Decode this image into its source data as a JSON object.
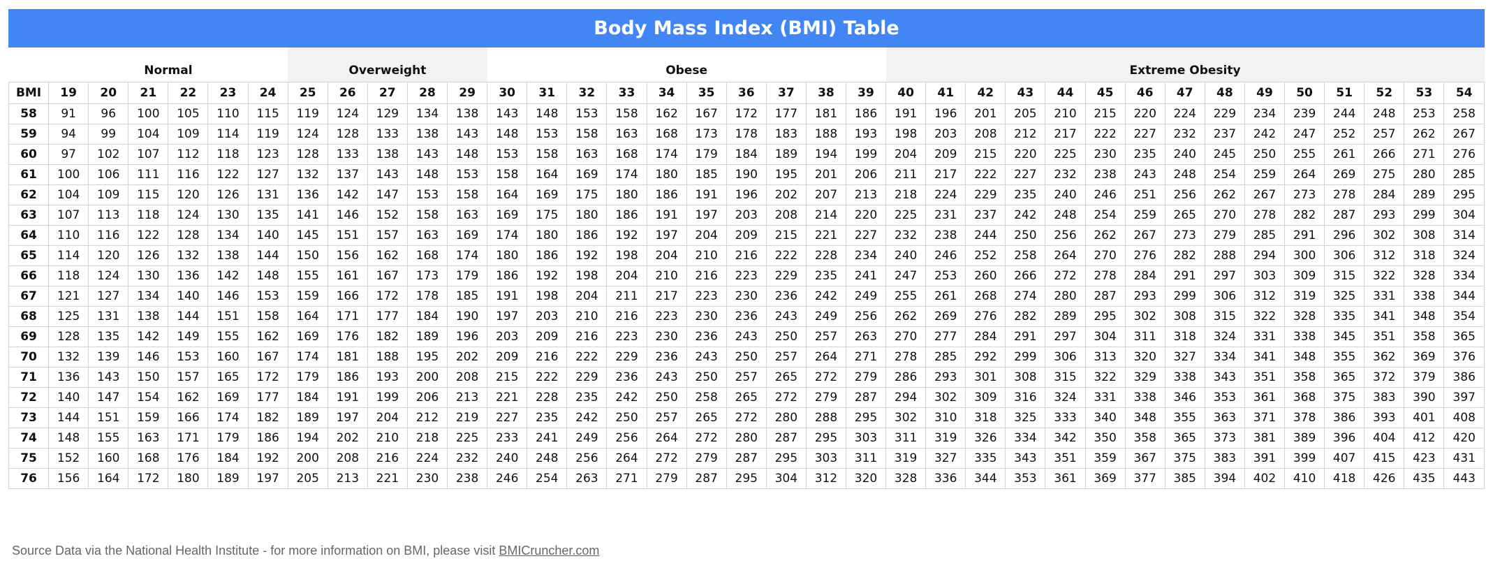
{
  "header": {
    "title": "Body Mass Index (BMI) Table"
  },
  "table": {
    "corner": "BMI",
    "groups": [
      {
        "label": "Normal",
        "bmi": [
          19,
          20,
          21,
          22,
          23,
          24
        ]
      },
      {
        "label": "Overweight",
        "bmi": [
          25,
          26,
          27,
          28,
          29
        ]
      },
      {
        "label": "Obese",
        "bmi": [
          30,
          31,
          32,
          33,
          34,
          35,
          36,
          37,
          38,
          39
        ]
      },
      {
        "label": "Extreme Obesity",
        "bmi": [
          40,
          41,
          42,
          43,
          44,
          45,
          46,
          47,
          48,
          49,
          50,
          51,
          52,
          53,
          54
        ]
      }
    ],
    "rows": [
      {
        "height": 58,
        "weights": [
          91,
          96,
          100,
          105,
          110,
          115,
          119,
          124,
          129,
          134,
          138,
          143,
          148,
          153,
          158,
          162,
          167,
          172,
          177,
          181,
          186,
          191,
          196,
          201,
          205,
          210,
          215,
          220,
          224,
          229,
          234,
          239,
          244,
          248,
          253,
          258
        ]
      },
      {
        "height": 59,
        "weights": [
          94,
          99,
          104,
          109,
          114,
          119,
          124,
          128,
          133,
          138,
          143,
          148,
          153,
          158,
          163,
          168,
          173,
          178,
          183,
          188,
          193,
          198,
          203,
          208,
          212,
          217,
          222,
          227,
          232,
          237,
          242,
          247,
          252,
          257,
          262,
          267
        ]
      },
      {
        "height": 60,
        "weights": [
          97,
          102,
          107,
          112,
          118,
          123,
          128,
          133,
          138,
          143,
          148,
          153,
          158,
          163,
          168,
          174,
          179,
          184,
          189,
          194,
          199,
          204,
          209,
          215,
          220,
          225,
          230,
          235,
          240,
          245,
          250,
          255,
          261,
          266,
          271,
          276
        ]
      },
      {
        "height": 61,
        "weights": [
          100,
          106,
          111,
          116,
          122,
          127,
          132,
          137,
          143,
          148,
          153,
          158,
          164,
          169,
          174,
          180,
          185,
          190,
          195,
          201,
          206,
          211,
          217,
          222,
          227,
          232,
          238,
          243,
          248,
          254,
          259,
          264,
          269,
          275,
          280,
          285
        ]
      },
      {
        "height": 62,
        "weights": [
          104,
          109,
          115,
          120,
          126,
          131,
          136,
          142,
          147,
          153,
          158,
          164,
          169,
          175,
          180,
          186,
          191,
          196,
          202,
          207,
          213,
          218,
          224,
          229,
          235,
          240,
          246,
          251,
          256,
          262,
          267,
          273,
          278,
          284,
          289,
          295
        ]
      },
      {
        "height": 63,
        "weights": [
          107,
          113,
          118,
          124,
          130,
          135,
          141,
          146,
          152,
          158,
          163,
          169,
          175,
          180,
          186,
          191,
          197,
          203,
          208,
          214,
          220,
          225,
          231,
          237,
          242,
          248,
          254,
          259,
          265,
          270,
          278,
          282,
          287,
          293,
          299,
          304
        ]
      },
      {
        "height": 64,
        "weights": [
          110,
          116,
          122,
          128,
          134,
          140,
          145,
          151,
          157,
          163,
          169,
          174,
          180,
          186,
          192,
          197,
          204,
          209,
          215,
          221,
          227,
          232,
          238,
          244,
          250,
          256,
          262,
          267,
          273,
          279,
          285,
          291,
          296,
          302,
          308,
          314
        ]
      },
      {
        "height": 65,
        "weights": [
          114,
          120,
          126,
          132,
          138,
          144,
          150,
          156,
          162,
          168,
          174,
          180,
          186,
          192,
          198,
          204,
          210,
          216,
          222,
          228,
          234,
          240,
          246,
          252,
          258,
          264,
          270,
          276,
          282,
          288,
          294,
          300,
          306,
          312,
          318,
          324
        ]
      },
      {
        "height": 66,
        "weights": [
          118,
          124,
          130,
          136,
          142,
          148,
          155,
          161,
          167,
          173,
          179,
          186,
          192,
          198,
          204,
          210,
          216,
          223,
          229,
          235,
          241,
          247,
          253,
          260,
          266,
          272,
          278,
          284,
          291,
          297,
          303,
          309,
          315,
          322,
          328,
          334
        ]
      },
      {
        "height": 67,
        "weights": [
          121,
          127,
          134,
          140,
          146,
          153,
          159,
          166,
          172,
          178,
          185,
          191,
          198,
          204,
          211,
          217,
          223,
          230,
          236,
          242,
          249,
          255,
          261,
          268,
          274,
          280,
          287,
          293,
          299,
          306,
          312,
          319,
          325,
          331,
          338,
          344
        ]
      },
      {
        "height": 68,
        "weights": [
          125,
          131,
          138,
          144,
          151,
          158,
          164,
          171,
          177,
          184,
          190,
          197,
          203,
          210,
          216,
          223,
          230,
          236,
          243,
          249,
          256,
          262,
          269,
          276,
          282,
          289,
          295,
          302,
          308,
          315,
          322,
          328,
          335,
          341,
          348,
          354
        ]
      },
      {
        "height": 69,
        "weights": [
          128,
          135,
          142,
          149,
          155,
          162,
          169,
          176,
          182,
          189,
          196,
          203,
          209,
          216,
          223,
          230,
          236,
          243,
          250,
          257,
          263,
          270,
          277,
          284,
          291,
          297,
          304,
          311,
          318,
          324,
          331,
          338,
          345,
          351,
          358,
          365
        ]
      },
      {
        "height": 70,
        "weights": [
          132,
          139,
          146,
          153,
          160,
          167,
          174,
          181,
          188,
          195,
          202,
          209,
          216,
          222,
          229,
          236,
          243,
          250,
          257,
          264,
          271,
          278,
          285,
          292,
          299,
          306,
          313,
          320,
          327,
          334,
          341,
          348,
          355,
          362,
          369,
          376
        ]
      },
      {
        "height": 71,
        "weights": [
          136,
          143,
          150,
          157,
          165,
          172,
          179,
          186,
          193,
          200,
          208,
          215,
          222,
          229,
          236,
          243,
          250,
          257,
          265,
          272,
          279,
          286,
          293,
          301,
          308,
          315,
          322,
          329,
          338,
          343,
          351,
          358,
          365,
          372,
          379,
          386
        ]
      },
      {
        "height": 72,
        "weights": [
          140,
          147,
          154,
          162,
          169,
          177,
          184,
          191,
          199,
          206,
          213,
          221,
          228,
          235,
          242,
          250,
          258,
          265,
          272,
          279,
          287,
          294,
          302,
          309,
          316,
          324,
          331,
          338,
          346,
          353,
          361,
          368,
          375,
          383,
          390,
          397
        ]
      },
      {
        "height": 73,
        "weights": [
          144,
          151,
          159,
          166,
          174,
          182,
          189,
          197,
          204,
          212,
          219,
          227,
          235,
          242,
          250,
          257,
          265,
          272,
          280,
          288,
          295,
          302,
          310,
          318,
          325,
          333,
          340,
          348,
          355,
          363,
          371,
          378,
          386,
          393,
          401,
          408
        ]
      },
      {
        "height": 74,
        "weights": [
          148,
          155,
          163,
          171,
          179,
          186,
          194,
          202,
          210,
          218,
          225,
          233,
          241,
          249,
          256,
          264,
          272,
          280,
          287,
          295,
          303,
          311,
          319,
          326,
          334,
          342,
          350,
          358,
          365,
          373,
          381,
          389,
          396,
          404,
          412,
          420
        ]
      },
      {
        "height": 75,
        "weights": [
          152,
          160,
          168,
          176,
          184,
          192,
          200,
          208,
          216,
          224,
          232,
          240,
          248,
          256,
          264,
          272,
          279,
          287,
          295,
          303,
          311,
          319,
          327,
          335,
          343,
          351,
          359,
          367,
          375,
          383,
          391,
          399,
          407,
          415,
          423,
          431
        ]
      },
      {
        "height": 76,
        "weights": [
          156,
          164,
          172,
          180,
          189,
          197,
          205,
          213,
          221,
          230,
          238,
          246,
          254,
          263,
          271,
          279,
          287,
          295,
          304,
          312,
          320,
          328,
          336,
          344,
          353,
          361,
          369,
          377,
          385,
          394,
          402,
          410,
          418,
          426,
          435,
          443
        ]
      }
    ]
  },
  "footer": {
    "text": "Source Data via the National Health Institute - for more information on BMI, please visit",
    "link": "BMICruncher.com"
  }
}
